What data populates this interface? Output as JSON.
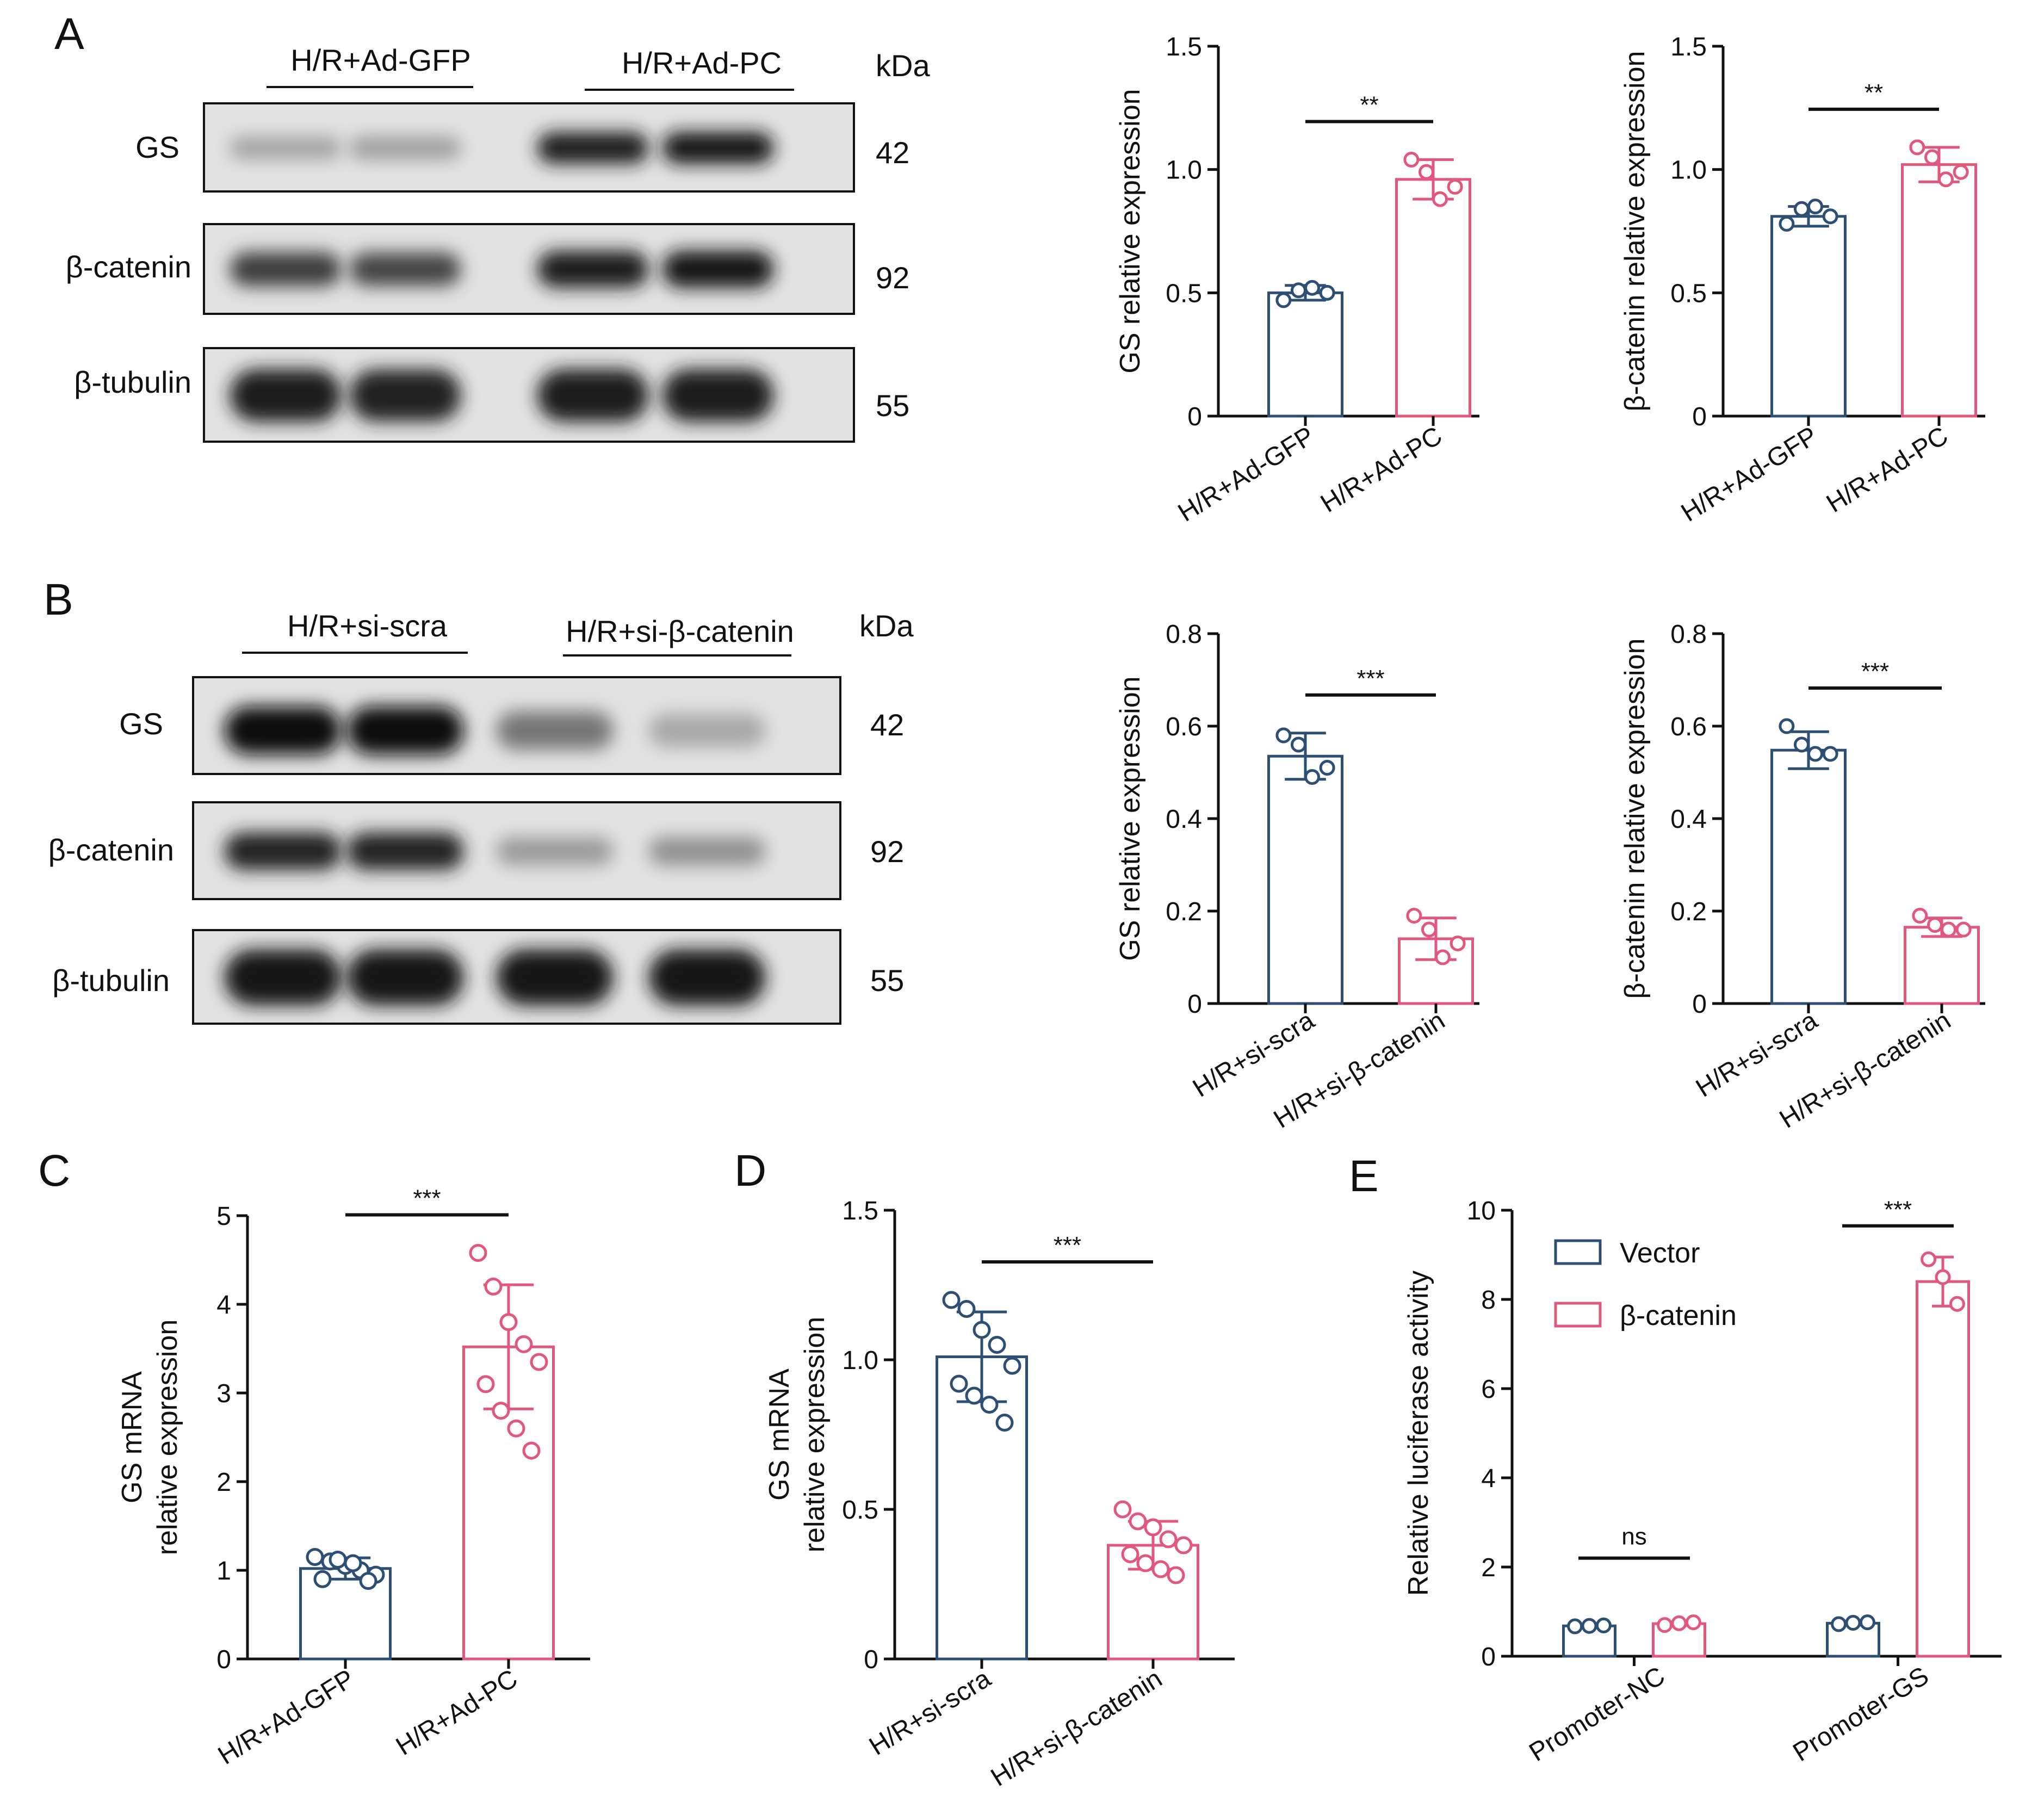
{
  "colors": {
    "gfp": "#2d4f73",
    "pc": "#e2577d",
    "axis": "#111111"
  },
  "panel_letters": {
    "A": "A",
    "B": "B",
    "C": "C",
    "D": "D",
    "E": "E"
  },
  "blots": {
    "A": {
      "groups": [
        "H/R+Ad-GFP",
        "H/R+Ad-PC"
      ],
      "kda_label": "kDa",
      "rows": [
        {
          "protein": "GS",
          "kda": "42",
          "intensities": [
            0.32,
            0.34,
            0.92,
            0.94
          ]
        },
        {
          "protein": "β-catenin",
          "kda": "92",
          "intensities": [
            0.78,
            0.74,
            0.92,
            0.94
          ]
        },
        {
          "protein": "β-tubulin",
          "kda": "55",
          "intensities": [
            0.92,
            0.9,
            0.92,
            0.92
          ]
        }
      ]
    },
    "B": {
      "groups": [
        "H/R+si-scra",
        "H/R+si-β-catenin"
      ],
      "kda_label": "kDa",
      "rows": [
        {
          "protein": "GS",
          "kda": "42",
          "intensities": [
            0.97,
            0.98,
            0.52,
            0.3
          ]
        },
        {
          "protein": "β-catenin",
          "kda": "92",
          "intensities": [
            0.9,
            0.9,
            0.36,
            0.4
          ]
        },
        {
          "protein": "β-tubulin",
          "kda": "55",
          "intensities": [
            0.95,
            0.95,
            0.95,
            0.95
          ]
        }
      ]
    }
  },
  "chart_data": [
    {
      "id": "A1",
      "type": "bar",
      "ylabel": "GS relative expression",
      "categories": [
        "H/R+Ad-GFP",
        "H/R+Ad-PC"
      ],
      "values": [
        0.5,
        0.96
      ],
      "sd": [
        0.03,
        0.08
      ],
      "points": [
        [
          0.47,
          0.51,
          0.52,
          0.5
        ],
        [
          1.04,
          0.99,
          0.88,
          0.93
        ]
      ],
      "ylim": [
        0,
        1.5
      ],
      "yticks": [
        "0",
        "0.5",
        "1.0",
        "1.5"
      ],
      "ytick_values": [
        0,
        0.5,
        1.0,
        1.5
      ],
      "significance": "**"
    },
    {
      "id": "A2",
      "type": "bar",
      "ylabel": "β-catenin relative expression",
      "categories": [
        "H/R+Ad-GFP",
        "H/R+Ad-PC"
      ],
      "values": [
        0.81,
        1.02
      ],
      "sd": [
        0.04,
        0.07
      ],
      "points": [
        [
          0.78,
          0.84,
          0.85,
          0.81
        ],
        [
          1.09,
          1.05,
          0.96,
          0.99
        ]
      ],
      "ylim": [
        0,
        1.5
      ],
      "yticks": [
        "0",
        "0.5",
        "1.0",
        "1.5"
      ],
      "ytick_values": [
        0,
        0.5,
        1.0,
        1.5
      ],
      "significance": "**"
    },
    {
      "id": "B1",
      "type": "bar",
      "ylabel": "GS relative expression",
      "categories": [
        "H/R+si-scra",
        "H/R+si-β-catenin"
      ],
      "values": [
        0.535,
        0.14
      ],
      "sd": [
        0.05,
        0.045
      ],
      "points": [
        [
          0.58,
          0.56,
          0.49,
          0.51
        ],
        [
          0.19,
          0.16,
          0.1,
          0.13
        ]
      ],
      "ylim": [
        0,
        0.8
      ],
      "yticks": [
        "0",
        "0.2",
        "0.4",
        "0.6",
        "0.8"
      ],
      "ytick_values": [
        0,
        0.2,
        0.4,
        0.6,
        0.8
      ],
      "significance": "***"
    },
    {
      "id": "B2",
      "type": "bar",
      "ylabel": "β-catenin relative expression",
      "categories": [
        "H/R+si-scra",
        "H/R+si-β-catenin"
      ],
      "values": [
        0.548,
        0.165
      ],
      "sd": [
        0.04,
        0.02
      ],
      "points": [
        [
          0.6,
          0.56,
          0.54,
          0.54
        ],
        [
          0.19,
          0.17,
          0.16,
          0.16
        ]
      ],
      "ylim": [
        0,
        0.8
      ],
      "yticks": [
        "0",
        "0.2",
        "0.4",
        "0.6",
        "0.8"
      ],
      "ytick_values": [
        0,
        0.2,
        0.4,
        0.6,
        0.8
      ],
      "significance": "***"
    },
    {
      "id": "C",
      "type": "bar",
      "ylabel": [
        "GS mRNA",
        "relative expression"
      ],
      "categories": [
        "H/R+Ad-GFP",
        "H/R+Ad-PC"
      ],
      "values": [
        1.02,
        3.52
      ],
      "sd": [
        0.12,
        0.7
      ],
      "points": [
        [
          1.15,
          1.1,
          1.05,
          1.0,
          0.95,
          0.9,
          1.12,
          1.08,
          0.88
        ],
        [
          4.58,
          4.2,
          3.8,
          3.55,
          3.35,
          3.1,
          2.8,
          2.6,
          2.35
        ]
      ],
      "ylim": [
        0,
        5
      ],
      "yticks": [
        "0",
        "1",
        "2",
        "3",
        "4",
        "5"
      ],
      "ytick_values": [
        0,
        1,
        2,
        3,
        4,
        5
      ],
      "significance": "***"
    },
    {
      "id": "D",
      "type": "bar",
      "ylabel": [
        "GS mRNA",
        "relative expression"
      ],
      "categories": [
        "H/R+si-scra",
        "H/R+si-β-catenin"
      ],
      "values": [
        1.01,
        0.38
      ],
      "sd": [
        0.15,
        0.08
      ],
      "points": [
        [
          1.2,
          1.17,
          1.1,
          1.05,
          0.98,
          0.92,
          0.88,
          0.85,
          0.79
        ],
        [
          0.5,
          0.46,
          0.44,
          0.4,
          0.38,
          0.35,
          0.32,
          0.3,
          0.28
        ]
      ],
      "ylim": [
        0,
        1.5
      ],
      "yticks": [
        "0",
        "0.5",
        "1.0",
        "1.5"
      ],
      "ytick_values": [
        0,
        0.5,
        1.0,
        1.5
      ],
      "significance": "***"
    },
    {
      "id": "E",
      "type": "bar",
      "ylabel": "Relative luciferase activity",
      "categories": [
        "Promoter-NC",
        "Promoter-GS"
      ],
      "series": [
        {
          "name": "Vector",
          "values": [
            0.68,
            0.74
          ],
          "sd": [
            0.02,
            0.04
          ],
          "points": [
            [
              0.67,
              0.68,
              0.69
            ],
            [
              0.72,
              0.75,
              0.76
            ]
          ]
        },
        {
          "name": "β-catenin",
          "values": [
            0.73,
            8.4
          ],
          "sd": [
            0.04,
            0.55
          ],
          "points": [
            [
              0.7,
              0.74,
              0.76
            ],
            [
              8.9,
              8.5,
              7.9
            ]
          ]
        }
      ],
      "ylim": [
        0,
        10
      ],
      "yticks": [
        "0",
        "2",
        "4",
        "6",
        "8",
        "10"
      ],
      "ytick_values": [
        0,
        2,
        4,
        6,
        8,
        10
      ],
      "significance": [
        "ns",
        "***"
      ]
    }
  ]
}
